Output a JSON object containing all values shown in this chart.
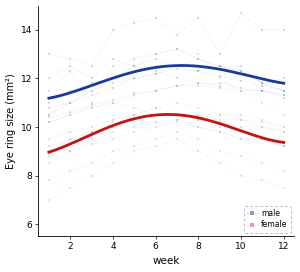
{
  "title": "",
  "xlabel": "week",
  "ylabel": "Eye ring size (mm²)",
  "xlim": [
    0.5,
    12.5
  ],
  "ylim": [
    5.5,
    15.0
  ],
  "xticks": [
    2,
    4,
    6,
    8,
    10,
    12
  ],
  "yticks": [
    6,
    8,
    10,
    12,
    14
  ],
  "male_color": "#8899cc",
  "female_color": "#e0a0a0",
  "male_trend_color": "#1a3a9a",
  "female_trend_color": "#c01515",
  "male_individuals": [
    [
      1,
      10.4
    ],
    [
      2,
      10.6
    ],
    [
      3,
      10.9
    ],
    [
      4,
      11.1
    ],
    [
      5,
      11.4
    ],
    [
      6,
      11.5
    ],
    [
      7,
      11.7
    ],
    [
      8,
      11.7
    ],
    [
      9,
      11.6
    ],
    [
      10,
      11.5
    ],
    [
      11,
      11.5
    ],
    [
      12,
      11.3
    ],
    [
      1,
      10.8
    ],
    [
      2,
      11.0
    ],
    [
      3,
      11.3
    ],
    [
      4,
      11.6
    ],
    [
      5,
      12.0
    ],
    [
      6,
      12.2
    ],
    [
      7,
      12.4
    ],
    [
      8,
      12.3
    ],
    [
      9,
      12.1
    ],
    [
      10,
      11.9
    ],
    [
      11,
      11.7
    ],
    [
      12,
      11.5
    ],
    [
      1,
      11.5
    ],
    [
      2,
      12.3
    ],
    [
      3,
      11.0
    ],
    [
      4,
      12.5
    ],
    [
      5,
      12.8
    ],
    [
      6,
      13.0
    ],
    [
      7,
      13.2
    ],
    [
      8,
      12.8
    ],
    [
      9,
      12.5
    ],
    [
      10,
      12.3
    ],
    [
      11,
      11.8
    ],
    [
      12,
      12.0
    ],
    [
      1,
      10.5
    ],
    [
      2,
      11.0
    ],
    [
      3,
      11.5
    ],
    [
      4,
      11.8
    ],
    [
      5,
      12.0
    ],
    [
      6,
      12.2
    ],
    [
      7,
      12.5
    ],
    [
      8,
      12.8
    ],
    [
      9,
      12.5
    ],
    [
      10,
      12.3
    ],
    [
      11,
      11.8
    ],
    [
      12,
      11.5
    ],
    [
      1,
      13.0
    ],
    [
      2,
      12.8
    ],
    [
      3,
      12.5
    ],
    [
      4,
      14.0
    ],
    [
      5,
      14.3
    ],
    [
      6,
      14.5
    ],
    [
      7,
      13.8
    ],
    [
      8,
      14.5
    ],
    [
      9,
      13.0
    ],
    [
      10,
      14.7
    ],
    [
      11,
      14.0
    ],
    [
      12,
      14.0
    ],
    [
      1,
      11.0
    ],
    [
      2,
      11.5
    ],
    [
      3,
      11.8
    ],
    [
      4,
      12.0
    ],
    [
      5,
      12.5
    ],
    [
      6,
      12.8
    ],
    [
      7,
      12.5
    ],
    [
      8,
      12.3
    ],
    [
      9,
      12.5
    ],
    [
      10,
      12.5
    ],
    [
      11,
      11.8
    ],
    [
      12,
      11.5
    ],
    [
      1,
      12.0
    ],
    [
      2,
      12.5
    ],
    [
      3,
      12.0
    ],
    [
      4,
      12.8
    ],
    [
      5,
      12.5
    ],
    [
      6,
      12.3
    ],
    [
      7,
      12.0
    ],
    [
      8,
      11.8
    ],
    [
      9,
      11.7
    ],
    [
      10,
      12.2
    ],
    [
      11,
      11.5
    ],
    [
      12,
      11.3
    ],
    [
      1,
      10.2
    ],
    [
      2,
      10.5
    ],
    [
      3,
      10.8
    ],
    [
      4,
      11.0
    ],
    [
      5,
      11.3
    ],
    [
      6,
      11.5
    ],
    [
      7,
      11.7
    ],
    [
      8,
      11.8
    ],
    [
      9,
      11.8
    ],
    [
      10,
      11.6
    ],
    [
      11,
      11.5
    ],
    [
      12,
      11.2
    ]
  ],
  "female_individuals": [
    [
      1,
      9.5
    ],
    [
      2,
      9.8
    ],
    [
      3,
      10.0
    ],
    [
      4,
      10.3
    ],
    [
      5,
      10.5
    ],
    [
      6,
      10.5
    ],
    [
      7,
      10.5
    ],
    [
      8,
      10.5
    ],
    [
      9,
      10.3
    ],
    [
      10,
      10.3
    ],
    [
      11,
      10.2
    ],
    [
      12,
      10.0
    ],
    [
      1,
      9.0
    ],
    [
      2,
      9.5
    ],
    [
      3,
      9.8
    ],
    [
      4,
      10.0
    ],
    [
      5,
      10.3
    ],
    [
      6,
      10.5
    ],
    [
      7,
      10.5
    ],
    [
      8,
      10.3
    ],
    [
      9,
      10.2
    ],
    [
      10,
      10.0
    ],
    [
      11,
      10.0
    ],
    [
      12,
      9.8
    ],
    [
      1,
      8.5
    ],
    [
      2,
      9.0
    ],
    [
      3,
      9.5
    ],
    [
      4,
      9.8
    ],
    [
      5,
      10.0
    ],
    [
      6,
      10.2
    ],
    [
      7,
      10.3
    ],
    [
      8,
      10.0
    ],
    [
      9,
      9.8
    ],
    [
      10,
      9.5
    ],
    [
      11,
      9.5
    ],
    [
      12,
      9.2
    ],
    [
      1,
      10.5
    ],
    [
      2,
      11.0
    ],
    [
      3,
      11.5
    ],
    [
      4,
      12.0
    ],
    [
      5,
      12.5
    ],
    [
      6,
      13.0
    ],
    [
      7,
      13.2
    ],
    [
      8,
      13.0
    ],
    [
      9,
      12.0
    ],
    [
      10,
      11.5
    ],
    [
      11,
      11.0
    ],
    [
      12,
      10.5
    ],
    [
      1,
      7.8
    ],
    [
      2,
      8.2
    ],
    [
      3,
      8.5
    ],
    [
      4,
      9.0
    ],
    [
      5,
      9.2
    ],
    [
      6,
      9.5
    ],
    [
      7,
      9.8
    ],
    [
      8,
      9.5
    ],
    [
      9,
      9.0
    ],
    [
      10,
      8.8
    ],
    [
      11,
      8.5
    ],
    [
      12,
      8.2
    ],
    [
      1,
      9.0
    ],
    [
      2,
      9.3
    ],
    [
      3,
      9.8
    ],
    [
      4,
      10.0
    ],
    [
      5,
      10.5
    ],
    [
      6,
      10.8
    ],
    [
      7,
      11.0
    ],
    [
      8,
      10.8
    ],
    [
      9,
      10.5
    ],
    [
      10,
      10.5
    ],
    [
      11,
      10.3
    ],
    [
      12,
      10.0
    ],
    [
      1,
      8.8
    ],
    [
      2,
      9.0
    ],
    [
      3,
      9.3
    ],
    [
      4,
      9.5
    ],
    [
      5,
      9.8
    ],
    [
      6,
      10.0
    ],
    [
      7,
      10.2
    ],
    [
      8,
      10.0
    ],
    [
      9,
      9.8
    ],
    [
      10,
      9.5
    ],
    [
      11,
      9.5
    ],
    [
      12,
      9.2
    ],
    [
      1,
      7.0
    ],
    [
      2,
      7.5
    ],
    [
      3,
      8.0
    ],
    [
      4,
      8.5
    ],
    [
      5,
      9.0
    ],
    [
      6,
      9.2
    ],
    [
      7,
      9.5
    ],
    [
      8,
      9.0
    ],
    [
      9,
      8.5
    ],
    [
      10,
      8.0
    ],
    [
      11,
      7.8
    ],
    [
      12,
      7.5
    ],
    [
      1,
      10.2
    ],
    [
      2,
      10.5
    ],
    [
      3,
      10.8
    ],
    [
      4,
      11.0
    ],
    [
      5,
      10.8
    ],
    [
      6,
      10.5
    ],
    [
      7,
      10.3
    ],
    [
      8,
      10.5
    ],
    [
      9,
      10.5
    ],
    [
      10,
      10.3
    ],
    [
      11,
      10.0
    ],
    [
      12,
      9.8
    ],
    [
      1,
      9.2
    ],
    [
      2,
      9.5
    ],
    [
      3,
      9.8
    ],
    [
      4,
      10.2
    ],
    [
      5,
      10.5
    ],
    [
      6,
      10.8
    ],
    [
      7,
      10.5
    ],
    [
      8,
      10.3
    ],
    [
      9,
      10.0
    ],
    [
      10,
      9.8
    ],
    [
      11,
      9.5
    ],
    [
      12,
      9.2
    ]
  ],
  "figsize": [
    3.0,
    2.72
  ],
  "dpi": 100,
  "bg_color": "#ffffff",
  "legend_border_color": "#aaaacc"
}
